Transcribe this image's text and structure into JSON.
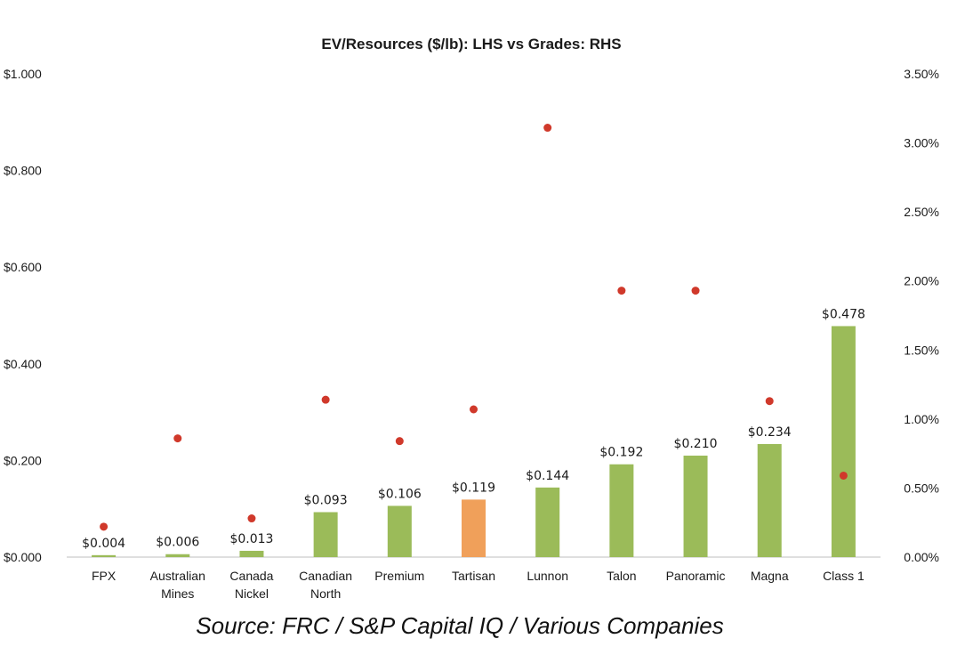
{
  "chart_data": {
    "type": "bar",
    "title": "EV/Resources ($/lb): LHS vs Grades: RHS",
    "categories": [
      [
        "FPX"
      ],
      [
        "Australian",
        "Mines"
      ],
      [
        "Canada",
        "Nickel"
      ],
      [
        "Canadian",
        "North"
      ],
      [
        "Premium"
      ],
      [
        "Tartisan"
      ],
      [
        "Lunnon"
      ],
      [
        "Talon"
      ],
      [
        "Panoramic"
      ],
      [
        "Magna"
      ],
      [
        "Class 1"
      ]
    ],
    "series": [
      {
        "name": "",
        "kind": "bar",
        "axis": "left",
        "values": [
          0.004,
          0.006,
          0.013,
          0.093,
          0.106,
          0.119,
          0.144,
          0.192,
          0.21,
          0.234,
          0.478
        ],
        "data_labels": [
          "$0.004",
          "$0.006",
          "$0.013",
          "$0.093",
          "$0.106",
          "$0.119",
          "$0.144",
          "$0.192",
          "$0.210",
          "$0.234",
          "$0.478"
        ],
        "color": "#9bbb59",
        "highlight_index": 5,
        "highlight_color": "#f0a05a"
      },
      {
        "name": "",
        "kind": "scatter",
        "axis": "right",
        "values": [
          0.22,
          0.86,
          0.28,
          1.14,
          0.84,
          1.07,
          3.11,
          1.93,
          1.93,
          1.13,
          0.59
        ],
        "color": "#d0392b"
      }
    ],
    "y_left": {
      "ylim": [
        0,
        1.0
      ],
      "ticks": [
        "$1.000",
        "$0.800",
        "$0.600",
        "$0.400",
        "$0.200",
        "$0.000"
      ],
      "tick_values": [
        1.0,
        0.8,
        0.6,
        0.4,
        0.2,
        0.0
      ]
    },
    "y_right": {
      "ylim": [
        0,
        3.5
      ],
      "ticks": [
        "3.50%",
        "3.00%",
        "2.50%",
        "2.00%",
        "1.50%",
        "1.00%",
        "0.50%",
        "0.00%"
      ],
      "tick_values": [
        3.5,
        3.0,
        2.5,
        2.0,
        1.5,
        1.0,
        0.5,
        0.0
      ]
    },
    "grid": false,
    "legend": "none"
  },
  "source": "Source: FRC / S&P Capital IQ / Various Companies"
}
